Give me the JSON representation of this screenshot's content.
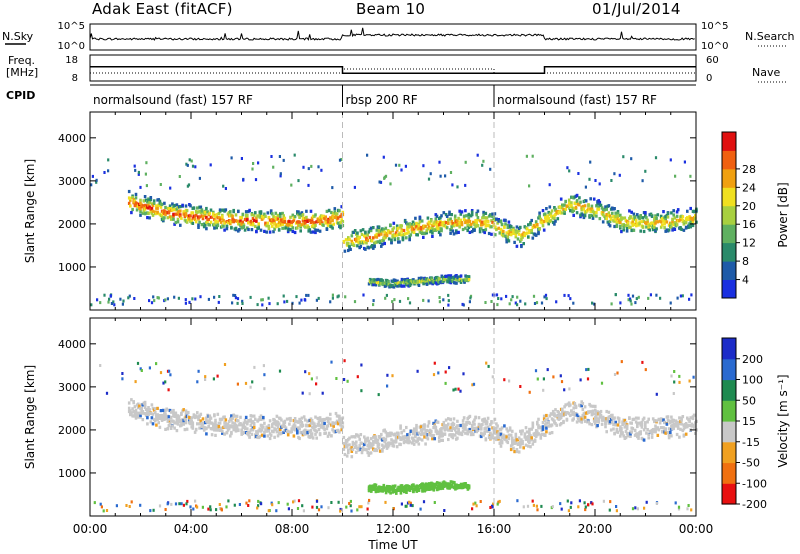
{
  "header": {
    "station": "Adak East (fitACF)",
    "beam": "Beam 10",
    "date": "01/Jul/2014"
  },
  "top_panels": {
    "nsky_label": "N.Sky",
    "nsky_ticks": [
      "10^5",
      "10^0"
    ],
    "nsearch_label": "N.Search",
    "nsearch_ticks": [
      "10^5",
      "10^0"
    ],
    "freq_label": "Freq.",
    "freq_unit": "[MHz]",
    "freq_ticks": [
      "18",
      "8"
    ],
    "nave_label": "Nave",
    "nave_ticks": [
      "60",
      "0"
    ],
    "cpid_label": "CPID",
    "cpid_segments": [
      {
        "label": "normalsound (fast) 157 RF",
        "start_hour": 0,
        "end_hour": 10
      },
      {
        "label": "rbsp 200 RF",
        "start_hour": 10,
        "end_hour": 16
      },
      {
        "label": "normalsound (fast) 157 RF",
        "start_hour": 16,
        "end_hour": 24
      }
    ],
    "freq_series": [
      {
        "start_hour": 0,
        "end_hour": 10,
        "value": 13.5
      },
      {
        "start_hour": 10,
        "end_hour": 18,
        "value": 10.8
      },
      {
        "start_hour": 18,
        "end_hour": 24,
        "value": 13.5
      }
    ]
  },
  "chart_data": [
    {
      "type": "heatmap",
      "parameter": "power",
      "xlabel": "",
      "ylabel": "Slant Range [km]",
      "xlim": [
        0,
        24
      ],
      "ylim": [
        0,
        4600
      ],
      "yticks": [
        1000,
        2000,
        3000,
        4000
      ],
      "colorbar_label": "Power [dB]",
      "colorbar_ticks": [
        "4",
        "8",
        "12",
        "16",
        "20",
        "24",
        "28"
      ],
      "colorbar_colors": [
        "#1a30e0",
        "#1e5aa8",
        "#2a8a6a",
        "#5fb060",
        "#a8d040",
        "#f0e020",
        "#f0a010",
        "#f06010",
        "#e01010"
      ],
      "features": [
        {
          "name": "main-band",
          "x": [
            1.5,
            3,
            5,
            7,
            9,
            10
          ],
          "y": [
            2500,
            2250,
            2100,
            2050,
            2050,
            2150
          ],
          "peak_db": 28
        },
        {
          "name": "post-dawn-band",
          "x": [
            10,
            11,
            12,
            13,
            14,
            15,
            16
          ],
          "y": [
            1600,
            1650,
            1800,
            1900,
            2000,
            2050,
            2000
          ],
          "peak_db": 24
        },
        {
          "name": "low-range-band",
          "x": [
            11,
            12,
            13,
            14,
            15
          ],
          "y": [
            650,
            600,
            650,
            700,
            700
          ],
          "peak_db": 16
        },
        {
          "name": "evening-band",
          "x": [
            16,
            17,
            18,
            19,
            20,
            21,
            22,
            23,
            24
          ],
          "y": [
            1900,
            1700,
            2100,
            2450,
            2300,
            2050,
            2000,
            2050,
            2150
          ],
          "peak_db": 22
        }
      ]
    },
    {
      "type": "heatmap",
      "parameter": "velocity",
      "xlabel": "Time UT",
      "ylabel": "Slant Range [km]",
      "xlim": [
        0,
        24
      ],
      "ylim": [
        0,
        4600
      ],
      "yticks": [
        1000,
        2000,
        3000,
        4000
      ],
      "xticks": [
        "00:00",
        "04:00",
        "08:00",
        "12:00",
        "16:00",
        "20:00",
        "00:00"
      ],
      "colorbar_label": "Velocity [m s⁻¹]",
      "colorbar_ticks": [
        "200",
        "100",
        "50",
        "15",
        "-15",
        "-50",
        "-100",
        "-200"
      ],
      "colorbar_colors": [
        "#1c2cc8",
        "#2a6ad0",
        "#1e8a50",
        "#60c040",
        "#c8c8c8",
        "#f0a020",
        "#f07010",
        "#e81010"
      ],
      "features": [
        {
          "name": "main-band",
          "x": [
            1.5,
            3,
            5,
            7,
            9,
            10
          ],
          "y": [
            2500,
            2250,
            2100,
            2050,
            2050,
            2150
          ],
          "velocity": 0
        },
        {
          "name": "post-dawn-band",
          "x": [
            10,
            11,
            12,
            13,
            14,
            15,
            16
          ],
          "y": [
            1600,
            1650,
            1800,
            1900,
            2000,
            2050,
            2000
          ],
          "velocity": 0
        },
        {
          "name": "low-range-band",
          "x": [
            11,
            12,
            13,
            14,
            15
          ],
          "y": [
            650,
            600,
            650,
            700,
            700
          ],
          "velocity": 40
        },
        {
          "name": "evening-band",
          "x": [
            16,
            17,
            18,
            19,
            20,
            21,
            22,
            23,
            24
          ],
          "y": [
            1900,
            1700,
            2100,
            2450,
            2300,
            2050,
            2000,
            2050,
            2150
          ],
          "velocity": 0
        }
      ]
    }
  ]
}
